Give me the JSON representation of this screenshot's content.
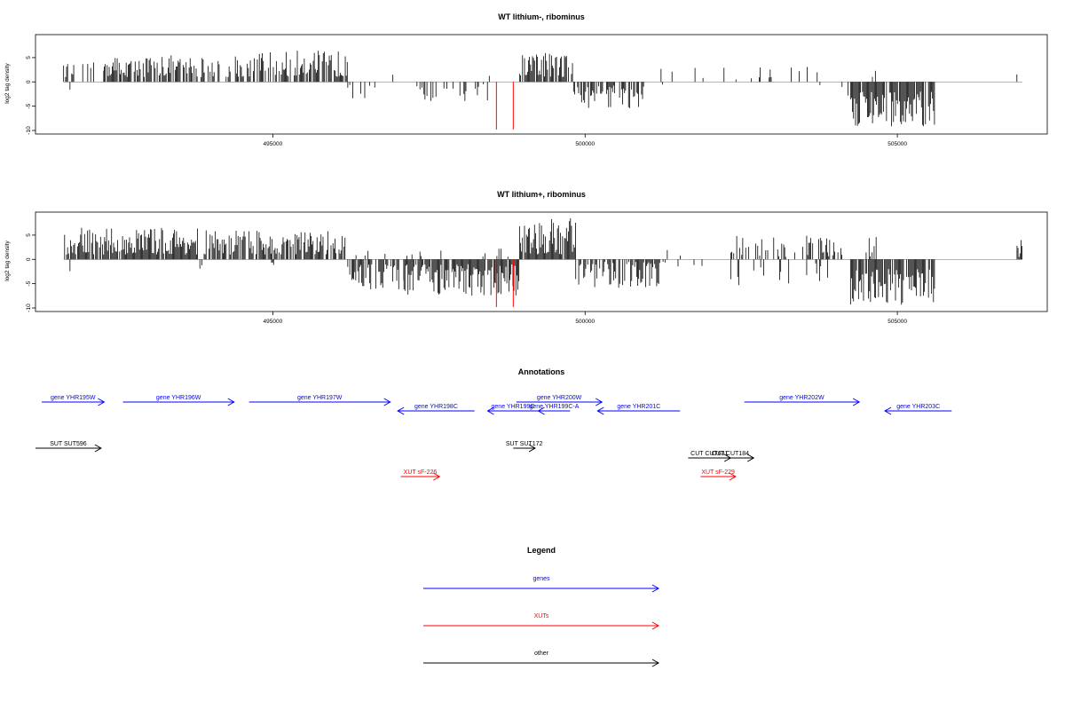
{
  "colors": {
    "genes": "#0000ff",
    "xuts": "#ff0000",
    "other": "#000000",
    "highlight": "#ff0000"
  },
  "chart_data": [
    {
      "type": "bar",
      "title": "WT lithium-, ribominus",
      "ylabel": "log2 tag density",
      "xlim": [
        491200,
        507400
      ],
      "ylim": [
        -10,
        9
      ],
      "xticks": [
        495000,
        500000,
        505000
      ],
      "xtick_labels": [
        "495000",
        "500000",
        "505000"
      ],
      "yticks": [
        -10,
        -5,
        0,
        5
      ],
      "ytick_labels": [
        "-10",
        "-5",
        "0",
        "5"
      ],
      "grid": false,
      "highlight_bars": [
        {
          "x": 498580,
          "value": -9.8
        },
        {
          "x": 498850,
          "value": -9.8
        }
      ],
      "segments": [
        {
          "start": 491650,
          "end": 491720,
          "min": 1.0,
          "max": 4.0,
          "density": 0.6
        },
        {
          "start": 491720,
          "end": 491780,
          "min": -2.0,
          "max": -0.5,
          "density": 0.3
        },
        {
          "start": 491780,
          "end": 492300,
          "min": 1.0,
          "max": 4.0,
          "density": 0.2
        },
        {
          "start": 492300,
          "end": 493900,
          "min": 1.0,
          "max": 5.5,
          "density": 0.7
        },
        {
          "start": 493900,
          "end": 494400,
          "min": 1.0,
          "max": 4.5,
          "density": 0.3
        },
        {
          "start": 494400,
          "end": 496200,
          "min": 1.0,
          "max": 6.5,
          "density": 0.65
        },
        {
          "start": 496200,
          "end": 496650,
          "min": -3.5,
          "max": -0.5,
          "density": 0.3
        },
        {
          "start": 496650,
          "end": 497100,
          "min": 0.5,
          "max": 2.0,
          "density": 0.06
        },
        {
          "start": 497100,
          "end": 498100,
          "min": -4.0,
          "max": -0.5,
          "density": 0.25
        },
        {
          "start": 498100,
          "end": 498450,
          "min": -5.0,
          "max": -0.5,
          "density": 0.2
        },
        {
          "start": 498450,
          "end": 498600,
          "min": 1.0,
          "max": 3.0,
          "density": 0.1
        },
        {
          "start": 498950,
          "end": 499800,
          "min": 1.0,
          "max": 6.5,
          "density": 0.75
        },
        {
          "start": 499800,
          "end": 500950,
          "min": -5.5,
          "max": -0.5,
          "density": 0.6
        },
        {
          "start": 500950,
          "end": 501500,
          "min": -3.0,
          "max": -0.5,
          "density": 0.15
        },
        {
          "start": 501200,
          "end": 502500,
          "min": 0.5,
          "max": 3.0,
          "density": 0.05
        },
        {
          "start": 502500,
          "end": 503900,
          "min": 0.5,
          "max": 3.5,
          "density": 0.1
        },
        {
          "start": 503600,
          "end": 503800,
          "min": -1.5,
          "max": -0.5,
          "density": 0.1
        },
        {
          "start": 504000,
          "end": 504050,
          "min": 1.0,
          "max": 4.0,
          "density": 0.5
        },
        {
          "start": 504050,
          "end": 504250,
          "min": -3.0,
          "max": -0.5,
          "density": 0.2
        },
        {
          "start": 504250,
          "end": 505600,
          "min": -9.5,
          "max": -2.0,
          "density": 0.85
        },
        {
          "start": 504600,
          "end": 504650,
          "min": 1.0,
          "max": 3.5,
          "density": 0.5
        },
        {
          "start": 506850,
          "end": 507000,
          "min": 1.0,
          "max": 1.8,
          "density": 0.1
        }
      ]
    },
    {
      "type": "bar",
      "title": "WT lithium+, ribominus",
      "ylabel": "log2 tag density",
      "xlim": [
        491200,
        507400
      ],
      "ylim": [
        -10,
        9
      ],
      "xticks": [
        495000,
        500000,
        505000
      ],
      "xtick_labels": [
        "495000",
        "500000",
        "505000"
      ],
      "yticks": [
        -10,
        -5,
        0,
        5
      ],
      "ytick_labels": [
        "-10",
        "-5",
        "0",
        "5"
      ],
      "grid": false,
      "highlight_bars": [
        {
          "x": 498580,
          "value": -9.8
        },
        {
          "x": 498850,
          "value": -9.8
        }
      ],
      "segments": [
        {
          "start": 491650,
          "end": 493800,
          "min": 1.0,
          "max": 6.5,
          "density": 0.9
        },
        {
          "start": 491720,
          "end": 491780,
          "min": -3.0,
          "max": -0.5,
          "density": 0.4
        },
        {
          "start": 493800,
          "end": 493900,
          "min": -2.5,
          "max": -0.5,
          "density": 0.5
        },
        {
          "start": 493900,
          "end": 496200,
          "min": 1.0,
          "max": 6.0,
          "density": 0.75
        },
        {
          "start": 494900,
          "end": 495100,
          "min": -1.5,
          "max": -0.5,
          "density": 0.2
        },
        {
          "start": 496200,
          "end": 497100,
          "min": -6.5,
          "max": -1.0,
          "density": 0.6
        },
        {
          "start": 496300,
          "end": 497000,
          "min": 0.5,
          "max": 2.5,
          "density": 0.1
        },
        {
          "start": 497100,
          "end": 498950,
          "min": -7.5,
          "max": -1.0,
          "density": 0.9
        },
        {
          "start": 497100,
          "end": 498900,
          "min": 0.5,
          "max": 2.5,
          "density": 0.08
        },
        {
          "start": 498950,
          "end": 499850,
          "min": 1.0,
          "max": 8.5,
          "density": 0.95
        },
        {
          "start": 499850,
          "end": 501200,
          "min": -6.0,
          "max": -0.5,
          "density": 0.7
        },
        {
          "start": 501200,
          "end": 502000,
          "min": -2.0,
          "max": -0.5,
          "density": 0.1
        },
        {
          "start": 501300,
          "end": 501600,
          "min": 0.5,
          "max": 2.0,
          "density": 0.1
        },
        {
          "start": 502300,
          "end": 504000,
          "min": 0.5,
          "max": 5.0,
          "density": 0.45
        },
        {
          "start": 502300,
          "end": 504000,
          "min": -6.0,
          "max": -0.5,
          "density": 0.12
        },
        {
          "start": 504000,
          "end": 504150,
          "min": 0.5,
          "max": 4.0,
          "density": 0.4
        },
        {
          "start": 504250,
          "end": 505600,
          "min": -9.5,
          "max": -2.0,
          "density": 0.9
        },
        {
          "start": 504500,
          "end": 504700,
          "min": 0.5,
          "max": 5.5,
          "density": 0.3
        },
        {
          "start": 506900,
          "end": 507000,
          "min": 0.5,
          "max": 4.0,
          "density": 0.5
        }
      ]
    }
  ],
  "annotations": {
    "title": "Annotations",
    "xlim": [
      491200,
      507400
    ],
    "features": [
      {
        "label": "gene YHR195W",
        "start": 491300,
        "end": 492300,
        "strand": "+",
        "kind": "genes",
        "row": 0
      },
      {
        "label": "gene YHR196W",
        "start": 492600,
        "end": 494380,
        "strand": "+",
        "kind": "genes",
        "row": 0
      },
      {
        "label": "gene YHR197W",
        "start": 494620,
        "end": 496880,
        "strand": "+",
        "kind": "genes",
        "row": 0
      },
      {
        "label": "gene YHR198C",
        "start": 497000,
        "end": 498230,
        "strand": "-",
        "kind": "genes",
        "row": 1
      },
      {
        "label": "gene YHR199C",
        "start": 498440,
        "end": 499250,
        "strand": "-",
        "kind": "genes",
        "row": 1
      },
      {
        "label": "gene YHR199C-A",
        "start": 499250,
        "end": 499760,
        "strand": "-",
        "kind": "genes",
        "row": 1
      },
      {
        "label": "gene YHR200W",
        "start": 498900,
        "end": 500270,
        "strand": "+",
        "kind": "genes",
        "row": 0
      },
      {
        "label": "gene YHR201C",
        "start": 500200,
        "end": 501520,
        "strand": "-",
        "kind": "genes",
        "row": 1
      },
      {
        "label": "gene YHR202W",
        "start": 502550,
        "end": 504390,
        "strand": "+",
        "kind": "genes",
        "row": 0
      },
      {
        "label": "gene YHR203C",
        "start": 504800,
        "end": 505870,
        "strand": "-",
        "kind": "genes",
        "row": 1
      },
      {
        "label": "SUT SUT596",
        "start": 491200,
        "end": 492250,
        "strand": "+",
        "kind": "other",
        "row": 2
      },
      {
        "label": "SUT SUT172",
        "start": 498850,
        "end": 499200,
        "strand": "+",
        "kind": "other",
        "row": 2
      },
      {
        "label": "CUT CUT631",
        "start": 501650,
        "end": 502330,
        "strand": "+",
        "kind": "other",
        "row": 3
      },
      {
        "label": "CUT CUT184",
        "start": 501950,
        "end": 502700,
        "strand": "+",
        "kind": "other",
        "row": 3
      },
      {
        "label": "XUT sF-226",
        "start": 497050,
        "end": 497670,
        "strand": "+",
        "kind": "xuts",
        "row": 4
      },
      {
        "label": "XUT sF-229",
        "start": 501850,
        "end": 502410,
        "strand": "+",
        "kind": "xuts",
        "row": 4
      }
    ]
  },
  "legend": {
    "title": "Legend",
    "items": [
      {
        "label": "genes",
        "kind": "genes"
      },
      {
        "label": "XUTs",
        "kind": "xuts"
      },
      {
        "label": "other",
        "kind": "other"
      }
    ]
  }
}
